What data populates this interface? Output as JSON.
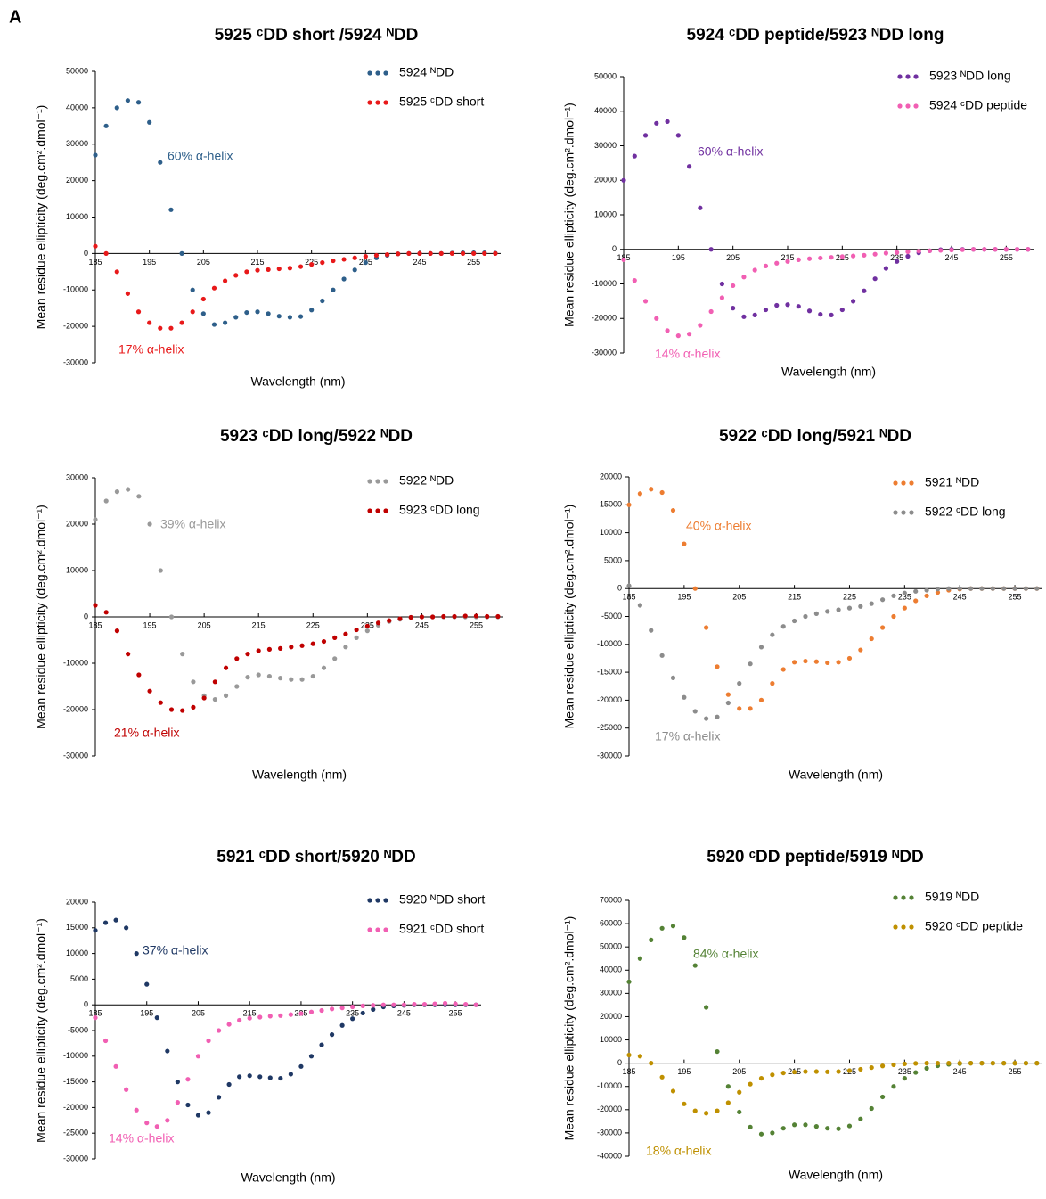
{
  "panel_label": "A",
  "chart_data": [
    {
      "type": "line",
      "title": "5925 ᶜDD short /5924 ᴺDD",
      "x_label": "Wavelength (nm)",
      "y_label": "Mean residue ellipticity (deg.cm².dmol⁻¹)",
      "xlim": [
        185,
        260
      ],
      "xticks": [
        185,
        195,
        205,
        215,
        225,
        235,
        245,
        255
      ],
      "ylim": [
        -30000,
        50000
      ],
      "yticks": [
        -30000,
        -20000,
        -10000,
        0,
        10000,
        20000,
        30000,
        40000,
        50000
      ],
      "x": [
        185,
        187,
        189,
        191,
        193,
        195,
        197,
        199,
        201,
        203,
        205,
        207,
        209,
        211,
        213,
        215,
        217,
        219,
        221,
        223,
        225,
        227,
        229,
        231,
        233,
        235,
        237,
        239,
        241,
        243,
        245,
        247,
        249,
        251,
        253,
        255,
        257,
        259
      ],
      "series": [
        {
          "name": "5924 ᴺDD",
          "color": "#2e5f8a",
          "values": [
            27000,
            35000,
            40000,
            42000,
            41500,
            36000,
            25000,
            12000,
            0,
            -10000,
            -16500,
            -19500,
            -19000,
            -17500,
            -16200,
            -16000,
            -16500,
            -17200,
            -17500,
            -17300,
            -15500,
            -13000,
            -10000,
            -7000,
            -4500,
            -2500,
            -1200,
            -500,
            -100,
            0,
            0,
            0,
            0,
            100,
            200,
            200,
            200,
            100
          ]
        },
        {
          "name": "5925 ᶜDD short",
          "color": "#e8191a",
          "values": [
            2000,
            0,
            -5000,
            -11000,
            -16000,
            -19000,
            -20500,
            -20500,
            -19000,
            -16000,
            -12500,
            -9500,
            -7500,
            -6000,
            -5000,
            -4600,
            -4400,
            -4200,
            -4000,
            -3600,
            -3000,
            -2500,
            -2000,
            -1600,
            -1200,
            -800,
            -500,
            -300,
            -100,
            0,
            0,
            0,
            0,
            0,
            0,
            0,
            0,
            0
          ]
        }
      ],
      "annotations": [
        {
          "text": "60% α-helix",
          "color": "#2e5f8a"
        },
        {
          "text": "17% α-helix",
          "color": "#e8191a"
        }
      ]
    },
    {
      "type": "line",
      "title": "5924 ᶜDD peptide/5923 ᴺDD long",
      "x_label": "Wavelength (nm)",
      "y_label": "Mean residue ellipticity (deg.cm².dmol⁻¹)",
      "xlim": [
        185,
        260
      ],
      "xticks": [
        185,
        195,
        205,
        215,
        225,
        235,
        245,
        255
      ],
      "ylim": [
        -30000,
        50000
      ],
      "yticks": [
        -30000,
        -20000,
        -10000,
        0,
        10000,
        20000,
        30000,
        40000,
        50000
      ],
      "x": [
        185,
        187,
        189,
        191,
        193,
        195,
        197,
        199,
        201,
        203,
        205,
        207,
        209,
        211,
        213,
        215,
        217,
        219,
        221,
        223,
        225,
        227,
        229,
        231,
        233,
        235,
        237,
        239,
        241,
        243,
        245,
        247,
        249,
        251,
        253,
        255,
        257,
        259
      ],
      "series": [
        {
          "name": "5923 ᴺDD long",
          "color": "#7030a0",
          "values": [
            20000,
            27000,
            33000,
            36500,
            37000,
            33000,
            24000,
            12000,
            0,
            -10000,
            -17000,
            -19500,
            -19000,
            -17500,
            -16200,
            -16000,
            -16500,
            -17800,
            -18800,
            -19000,
            -17500,
            -15000,
            -12000,
            -8500,
            -5500,
            -3500,
            -2000,
            -1000,
            -400,
            -100,
            0,
            0,
            0,
            0,
            0,
            0,
            0,
            0
          ]
        },
        {
          "name": "5924 ᶜDD peptide",
          "color": "#f15fb3",
          "values": [
            -3000,
            -9000,
            -15000,
            -20000,
            -23500,
            -25000,
            -24500,
            -22000,
            -18000,
            -14000,
            -10500,
            -8000,
            -6000,
            -4800,
            -4000,
            -3500,
            -3000,
            -2700,
            -2500,
            -2300,
            -2100,
            -1900,
            -1700,
            -1400,
            -1100,
            -900,
            -700,
            -500,
            -400,
            -300,
            -200,
            -100,
            0,
            0,
            0,
            0,
            0,
            0
          ]
        }
      ],
      "annotations": [
        {
          "text": "60% α-helix",
          "color": "#7030a0"
        },
        {
          "text": "14% α-helix",
          "color": "#f15fb3"
        }
      ]
    },
    {
      "type": "line",
      "title": "5923 ᶜDD long/5922 ᴺDD",
      "x_label": "Wavelength (nm)",
      "y_label": "Mean residue ellipticity (deg.cm².dmol⁻¹)",
      "xlim": [
        185,
        260
      ],
      "xticks": [
        185,
        195,
        205,
        215,
        225,
        235,
        245,
        255
      ],
      "ylim": [
        -30000,
        30000
      ],
      "yticks": [
        -30000,
        -20000,
        -10000,
        0,
        10000,
        20000,
        30000
      ],
      "x": [
        185,
        187,
        189,
        191,
        193,
        195,
        197,
        199,
        201,
        203,
        205,
        207,
        209,
        211,
        213,
        215,
        217,
        219,
        221,
        223,
        225,
        227,
        229,
        231,
        233,
        235,
        237,
        239,
        241,
        243,
        245,
        247,
        249,
        251,
        253,
        255,
        257,
        259
      ],
      "series": [
        {
          "name": "5922 ᴺDD",
          "color": "#999999",
          "values": [
            21000,
            25000,
            27000,
            27500,
            26000,
            20000,
            10000,
            0,
            -8000,
            -14000,
            -17000,
            -17800,
            -17000,
            -15000,
            -13000,
            -12500,
            -12800,
            -13200,
            -13500,
            -13500,
            -12800,
            -11000,
            -9000,
            -6500,
            -4500,
            -3000,
            -1800,
            -1000,
            -500,
            -100,
            0,
            0,
            0,
            0,
            0,
            0,
            0,
            0
          ]
        },
        {
          "name": "5923 ᶜDD long",
          "color": "#c00000",
          "values": [
            2500,
            1000,
            -3000,
            -8000,
            -12500,
            -16000,
            -18500,
            -20000,
            -20200,
            -19500,
            -17500,
            -14000,
            -11000,
            -9000,
            -8000,
            -7300,
            -7000,
            -6800,
            -6500,
            -6200,
            -5800,
            -5300,
            -4500,
            -3700,
            -2800,
            -2000,
            -1300,
            -800,
            -400,
            -100,
            0,
            0,
            100,
            100,
            200,
            200,
            100,
            100
          ]
        }
      ],
      "annotations": [
        {
          "text": "39% α-helix",
          "color": "#999999"
        },
        {
          "text": "21% α-helix",
          "color": "#c00000"
        }
      ]
    },
    {
      "type": "line",
      "title": "5922 ᶜDD long/5921 ᴺDD",
      "x_label": "Wavelength (nm)",
      "y_label": "Mean residue ellipticity (deg.cm².dmol⁻¹)",
      "xlim": [
        185,
        260
      ],
      "xticks": [
        185,
        195,
        205,
        215,
        225,
        235,
        245,
        255
      ],
      "ylim": [
        -30000,
        20000
      ],
      "yticks": [
        -30000,
        -25000,
        -20000,
        -15000,
        -10000,
        -5000,
        0,
        5000,
        10000,
        15000,
        20000
      ],
      "x": [
        185,
        187,
        189,
        191,
        193,
        195,
        197,
        199,
        201,
        203,
        205,
        207,
        209,
        211,
        213,
        215,
        217,
        219,
        221,
        223,
        225,
        227,
        229,
        231,
        233,
        235,
        237,
        239,
        241,
        243,
        245,
        247,
        249,
        251,
        253,
        255,
        257,
        259
      ],
      "series": [
        {
          "name": "5921 ᴺDD",
          "color": "#ed7d31",
          "values": [
            15000,
            17000,
            17800,
            17200,
            14000,
            8000,
            0,
            -7000,
            -14000,
            -19000,
            -21500,
            -21500,
            -20000,
            -17000,
            -14500,
            -13200,
            -13000,
            -13100,
            -13300,
            -13200,
            -12500,
            -11000,
            -9000,
            -7000,
            -5000,
            -3500,
            -2200,
            -1300,
            -700,
            -300,
            -100,
            0,
            0,
            0,
            0,
            0,
            0,
            0
          ]
        },
        {
          "name": "5922 ᶜDD long",
          "color": "#8c8c8c",
          "values": [
            500,
            -3000,
            -7500,
            -12000,
            -16000,
            -19500,
            -22000,
            -23300,
            -23000,
            -20500,
            -17000,
            -13500,
            -10500,
            -8300,
            -6800,
            -5800,
            -5000,
            -4500,
            -4100,
            -3800,
            -3500,
            -3200,
            -2700,
            -2000,
            -1300,
            -800,
            -500,
            -300,
            -100,
            0,
            0,
            0,
            0,
            0,
            0,
            0,
            0,
            0
          ]
        }
      ],
      "annotations": [
        {
          "text": "40% α-helix",
          "color": "#ed7d31"
        },
        {
          "text": "17% α-helix",
          "color": "#8c8c8c"
        }
      ]
    },
    {
      "type": "line",
      "title": "5921 ᶜDD short/5920 ᴺDD",
      "x_label": "Wavelength (nm)",
      "y_label": "Mean residue ellipticity (deg.cm².dmol⁻¹)",
      "xlim": [
        185,
        260
      ],
      "xticks": [
        185,
        195,
        205,
        215,
        225,
        235,
        245,
        255
      ],
      "ylim": [
        -30000,
        20000
      ],
      "yticks": [
        -30000,
        -25000,
        -20000,
        -15000,
        -10000,
        -5000,
        0,
        5000,
        10000,
        15000,
        20000
      ],
      "x": [
        185,
        187,
        189,
        191,
        193,
        195,
        197,
        199,
        201,
        203,
        205,
        207,
        209,
        211,
        213,
        215,
        217,
        219,
        221,
        223,
        225,
        227,
        229,
        231,
        233,
        235,
        237,
        239,
        241,
        243,
        245,
        247,
        249,
        251,
        253,
        255,
        257,
        259
      ],
      "series": [
        {
          "name": "5920 ᴺDD short",
          "color": "#1f3864",
          "values": [
            14500,
            16000,
            16500,
            15000,
            10000,
            4000,
            -2500,
            -9000,
            -15000,
            -19500,
            -21500,
            -21000,
            -18000,
            -15500,
            -14000,
            -13800,
            -14000,
            -14200,
            -14300,
            -13500,
            -12000,
            -10000,
            -7800,
            -5800,
            -4000,
            -2700,
            -1600,
            -900,
            -400,
            -200,
            -100,
            0,
            0,
            0,
            0,
            0,
            0,
            0
          ]
        },
        {
          "name": "5921 ᶜDD short",
          "color": "#f15fb3",
          "values": [
            -2500,
            -7000,
            -12000,
            -16500,
            -20500,
            -23000,
            -23700,
            -22500,
            -19000,
            -14500,
            -10000,
            -7000,
            -5000,
            -3800,
            -3000,
            -2600,
            -2400,
            -2200,
            -2100,
            -1900,
            -1700,
            -1400,
            -1100,
            -800,
            -600,
            -400,
            -200,
            -100,
            0,
            0,
            0,
            100,
            100,
            200,
            300,
            200,
            100,
            0
          ]
        }
      ],
      "annotations": [
        {
          "text": "37% α-helix",
          "color": "#1f3864"
        },
        {
          "text": "14% α-helix",
          "color": "#f15fb3"
        }
      ]
    },
    {
      "type": "line",
      "title": "5920 ᶜDD peptide/5919 ᴺDD",
      "x_label": "Wavelength (nm)",
      "y_label": "Mean residue ellipticity (deg.cm².dmol⁻¹)",
      "xlim": [
        185,
        260
      ],
      "xticks": [
        185,
        195,
        205,
        215,
        225,
        235,
        245,
        255
      ],
      "ylim": [
        -40000,
        70000
      ],
      "yticks": [
        -40000,
        -30000,
        -20000,
        -10000,
        0,
        10000,
        20000,
        30000,
        40000,
        50000,
        60000,
        70000
      ],
      "x": [
        185,
        187,
        189,
        191,
        193,
        195,
        197,
        199,
        201,
        203,
        205,
        207,
        209,
        211,
        213,
        215,
        217,
        219,
        221,
        223,
        225,
        227,
        229,
        231,
        233,
        235,
        237,
        239,
        241,
        243,
        245,
        247,
        249,
        251,
        253,
        255,
        257,
        259
      ],
      "series": [
        {
          "name": "5919 ᴺDD",
          "color": "#548235",
          "values": [
            35000,
            45000,
            53000,
            58000,
            59000,
            54000,
            42000,
            24000,
            5000,
            -10000,
            -21000,
            -27500,
            -30500,
            -30000,
            -28000,
            -26500,
            -26500,
            -27200,
            -28000,
            -28200,
            -27000,
            -24000,
            -19500,
            -14500,
            -10000,
            -6500,
            -4000,
            -2200,
            -1100,
            -500,
            -200,
            0,
            0,
            0,
            0,
            0,
            0,
            0
          ]
        },
        {
          "name": "5920 ᶜDD peptide",
          "color": "#bf9000",
          "values": [
            3500,
            3000,
            0,
            -6000,
            -12000,
            -17500,
            -20500,
            -21500,
            -20500,
            -17000,
            -12500,
            -9000,
            -6500,
            -5000,
            -4200,
            -3800,
            -3600,
            -3600,
            -3700,
            -3600,
            -3200,
            -2600,
            -1900,
            -1200,
            -700,
            -300,
            -100,
            0,
            0,
            0,
            0,
            0,
            0,
            0,
            0,
            0,
            0,
            0
          ]
        }
      ],
      "annotations": [
        {
          "text": "84% α-helix",
          "color": "#548235"
        },
        {
          "text": "18% α-helix",
          "color": "#bf9000"
        }
      ]
    }
  ]
}
